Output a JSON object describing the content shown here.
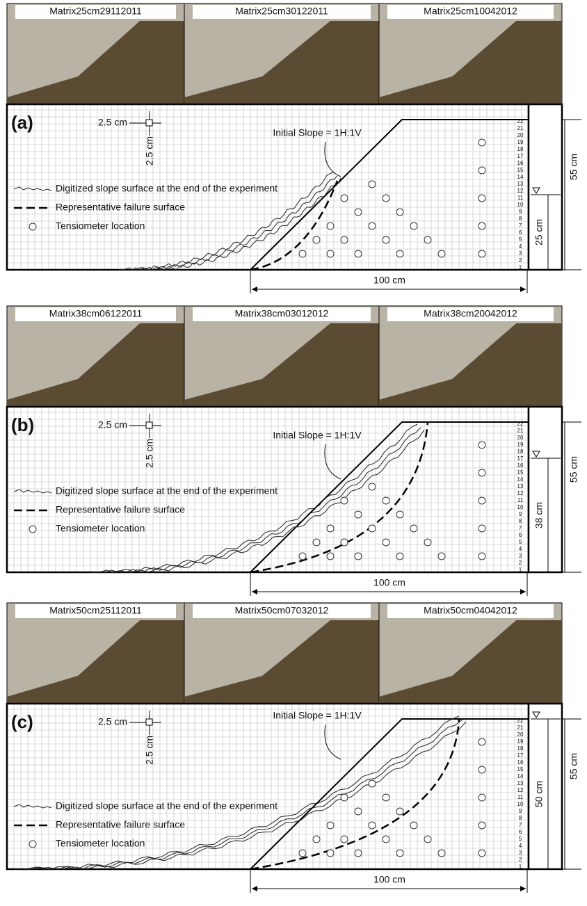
{
  "panels": [
    {
      "label": "(a)",
      "photos": [
        "Matrix25cm29112011",
        "Matrix25cm30122011",
        "Matrix25cm10042012"
      ],
      "scale_horizontal": "2.5 cm",
      "scale_vertical": "2.5 cm",
      "initial_slope": "Initial Slope = 1H:1V",
      "legend": [
        "Digitized slope surface at the end of the experiment",
        "Representative failure surface",
        "Tensiometer location"
      ],
      "row_labels": [
        1,
        2,
        3,
        4,
        5,
        6,
        7,
        8,
        9,
        10,
        11,
        12,
        13,
        14,
        15,
        16,
        17,
        18,
        19,
        20,
        21,
        22
      ],
      "water_depth": "25 cm",
      "total_height": "55 cm",
      "width": "100 cm"
    },
    {
      "label": "(b)",
      "photos": [
        "Matrix38cm06122011",
        "Matrix38cm03012012",
        "Matrix38cm20042012"
      ],
      "scale_horizontal": "2.5 cm",
      "scale_vertical": "2.5 cm",
      "initial_slope": "Initial Slope = 1H:1V",
      "legend": [
        "Digitized slope surface at the end of the experiment",
        "Representative failure surface",
        "Tensiometer location"
      ],
      "row_labels": [
        1,
        2,
        3,
        4,
        5,
        6,
        7,
        8,
        9,
        10,
        11,
        12,
        13,
        14,
        15,
        16,
        17,
        18,
        19,
        20,
        21,
        22
      ],
      "water_depth": "38 cm",
      "total_height": "55 cm",
      "width": "100 cm"
    },
    {
      "label": "(c)",
      "photos": [
        "Matrix50cm25112011",
        "Matrix50cm07032012",
        "Matrix50cm04042012"
      ],
      "scale_horizontal": "2.5 cm",
      "scale_vertical": "2.5 cm",
      "initial_slope": "Initial Slope = 1H:1V",
      "legend": [
        "Digitized slope surface at the end of the experiment",
        "Representative failure surface",
        "Tensiometer location"
      ],
      "row_labels": [
        1,
        2,
        3,
        4,
        5,
        6,
        7,
        8,
        9,
        10,
        11,
        12,
        13,
        14,
        15,
        16,
        17,
        18,
        19,
        20,
        21,
        22
      ],
      "water_depth": "50 cm",
      "total_height": "55 cm",
      "width": "100 cm"
    }
  ]
}
